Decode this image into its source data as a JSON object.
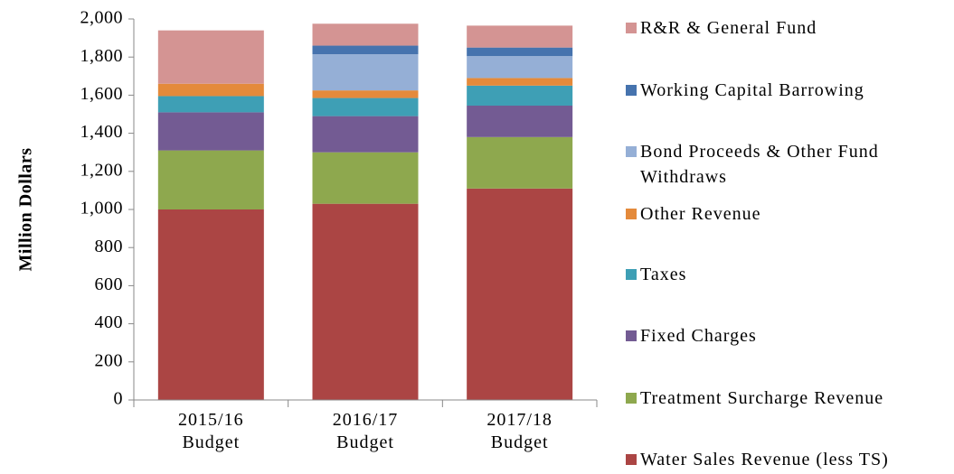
{
  "chart_data": {
    "type": "stacked_bar",
    "y_label": "Million Dollars",
    "categories": [
      "2015/16 Budget",
      "2016/17 Budget",
      "2017/18 Budget"
    ],
    "series": [
      {
        "name": "Water Sales Revenue (less TS)",
        "color": "#ab4544",
        "values": [
          1000,
          1030,
          1110
        ]
      },
      {
        "name": "Treatment Surcharge Revenue",
        "color": "#8ea84e",
        "values": [
          310,
          270,
          270
        ]
      },
      {
        "name": "Fixed Charges",
        "color": "#735b93",
        "values": [
          200,
          190,
          165
        ]
      },
      {
        "name": "Taxes",
        "color": "#3e9fb5",
        "values": [
          85,
          95,
          105
        ]
      },
      {
        "name": "Other Revenue",
        "color": "#e48a3b",
        "values": [
          65,
          40,
          40
        ]
      },
      {
        "name": "Bond Proceeds & Other Fund Withdraws",
        "color": "#95afd6",
        "values": [
          0,
          190,
          115
        ]
      },
      {
        "name": "Working Capital Barrowing",
        "color": "#4673ae",
        "values": [
          0,
          45,
          45
        ]
      },
      {
        "name": "R&R & General Fund",
        "color": "#d49493",
        "values": [
          280,
          115,
          115
        ]
      }
    ],
    "ylim": [
      0,
      2000
    ],
    "yticks": [
      0,
      200,
      400,
      600,
      800,
      {
        "value": 1000,
        "label": "1,000"
      },
      {
        "value": 1200,
        "label": "1,200"
      },
      {
        "value": 1400,
        "label": "1,400"
      },
      {
        "value": 1600,
        "label": "1,600"
      },
      {
        "value": 1800,
        "label": "1,800"
      },
      {
        "value": 2000,
        "label": "2,000"
      }
    ],
    "legend": "right"
  }
}
